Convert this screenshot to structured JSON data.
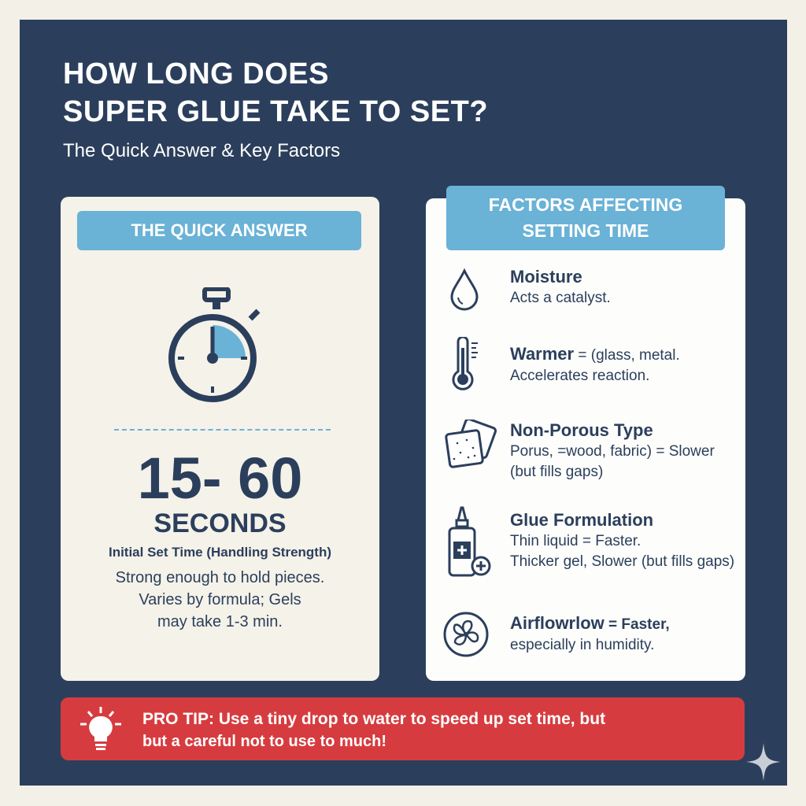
{
  "header": {
    "title_line1": "HOW LONG DOES",
    "title_line2": "SUPER GLUE TAKE TO SET?",
    "subtitle": "The Quick Answer & Key Factors"
  },
  "quick_answer": {
    "heading": "THE QUICK ANSWER",
    "value": "15- 60",
    "unit": "SECONDS",
    "label": "Initial Set Time (Handling Strength)",
    "lines": [
      "Strong enough to hold pieces.",
      "Varies by formula; Gels",
      "may take 1-3 min."
    ],
    "icon": "stopwatch-icon"
  },
  "factors": {
    "heading_line1": "FACTORS AFFECTING",
    "heading_line2": "SETTING TIME",
    "items": [
      {
        "title": "Moisture",
        "desc1": "Acts a catalyst.",
        "desc2": "",
        "icon": "water-drop-icon"
      },
      {
        "title": "Warmer",
        "title_suffix": " = (glass, metal.",
        "desc1": "Accelerates reaction.",
        "icon": "thermometer-icon"
      },
      {
        "title": "Non-Porous Type",
        "desc1": "Porus, =wood, fabric) = Slower",
        "desc2": "(but fills gaps)",
        "icon": "porous-material-icon"
      },
      {
        "title": "Glue Formulation",
        "desc1": "Thin liquid = Faster.",
        "desc2": "Thicker gel, Slower (but fills gaps)",
        "icon": "glue-bottle-icon"
      },
      {
        "title": "Airflowrlow",
        "title_suffix": " = Faster,",
        "desc1": "especially in humidity.",
        "icon": "fan-icon"
      }
    ]
  },
  "tip": {
    "line1": "PRO TIP: Use a tiny drop to water to speed up set time, but",
    "line2": "but a careful not to use to much!",
    "icon": "lightbulb-icon"
  },
  "colors": {
    "navy": "#2b3f5c",
    "accent_blue": "#6ab2d6",
    "tip_red": "#d63c3f",
    "cream": "#f5f2e9"
  }
}
